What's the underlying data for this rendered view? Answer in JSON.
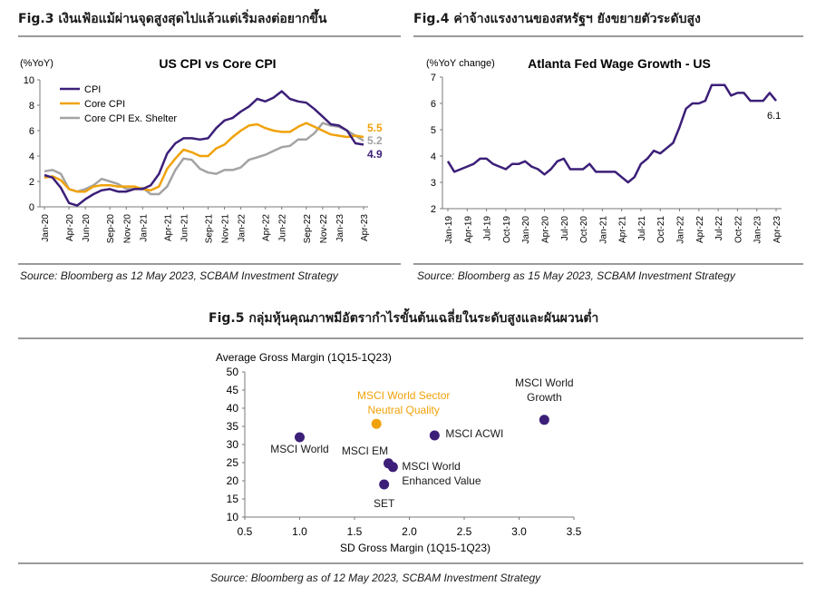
{
  "fig3": {
    "heading": "Fig.3 เงินเฟ้อแม้ผ่านจุดสูงสุดไปแล้วแต่เริ่มลงต่อยากขึ้น",
    "source": "Source: Bloomberg as 12 May 2023, SCBAM Investment Strategy"
  },
  "fig4": {
    "heading": "Fig.4 ค่าจ้างแรงงานของสหรัฐฯ ยังขยายตัวระดับสูง",
    "source": "Source: Bloomberg as 15 May 2023, SCBAM Investment Strategy"
  },
  "fig5": {
    "heading": "Fig.5 กลุ่มหุ้นคุณภาพมีอัตรากำไรขั้นต้นเฉลี่ยในระดับสูงและผันผวนต่ำ",
    "source": "Source: Bloomberg as of 12 May 2023, SCBAM Investment Strategy"
  },
  "colors": {
    "purple": "#3c1f78",
    "orange": "#f0a20a",
    "grey": "#a3a3a3",
    "axis": "#7a7a7a"
  },
  "chart_data": [
    {
      "id": "us-cpi",
      "type": "line",
      "title": "US CPI vs Core CPI",
      "ylabel": "(%YoY)",
      "ylim": [
        0,
        10
      ],
      "yticks": [
        "0",
        "2",
        "4",
        "6",
        "8",
        "10"
      ],
      "xticks": [
        "Jan-20",
        "Apr-20",
        "Jun-20",
        "Sep-20",
        "Nov-20",
        "Jan-21",
        "Apr-21",
        "Jun-21",
        "Sep-21",
        "Nov-21",
        "Jan-22",
        "Apr-22",
        "Jun-22",
        "Sep-22",
        "Nov-22",
        "Jan-23",
        "Apr-23"
      ],
      "xtick_index": [
        0,
        3,
        5,
        8,
        10,
        12,
        15,
        17,
        20,
        22,
        24,
        27,
        29,
        32,
        34,
        36,
        39
      ],
      "x": [
        "Jan-20",
        "Feb-20",
        "Mar-20",
        "Apr-20",
        "May-20",
        "Jun-20",
        "Jul-20",
        "Aug-20",
        "Sep-20",
        "Oct-20",
        "Nov-20",
        "Dec-20",
        "Jan-21",
        "Feb-21",
        "Mar-21",
        "Apr-21",
        "May-21",
        "Jun-21",
        "Jul-21",
        "Aug-21",
        "Sep-21",
        "Oct-21",
        "Nov-21",
        "Dec-21",
        "Jan-22",
        "Feb-22",
        "Mar-22",
        "Apr-22",
        "May-22",
        "Jun-22",
        "Jul-22",
        "Aug-22",
        "Sep-22",
        "Oct-22",
        "Nov-22",
        "Dec-22",
        "Jan-23",
        "Feb-23",
        "Mar-23",
        "Apr-23"
      ],
      "series": [
        {
          "name": "CPI",
          "color": "#3c1f78",
          "values": [
            2.5,
            2.3,
            1.5,
            0.3,
            0.1,
            0.6,
            1.0,
            1.3,
            1.4,
            1.2,
            1.2,
            1.4,
            1.4,
            1.7,
            2.6,
            4.2,
            5.0,
            5.4,
            5.4,
            5.3,
            5.4,
            6.2,
            6.8,
            7.0,
            7.5,
            7.9,
            8.5,
            8.3,
            8.6,
            9.1,
            8.5,
            8.3,
            8.2,
            7.7,
            7.1,
            6.5,
            6.4,
            6.0,
            5.0,
            4.9
          ]
        },
        {
          "name": "Core CPI",
          "color": "#f0a20a",
          "values": [
            2.3,
            2.4,
            2.1,
            1.4,
            1.2,
            1.2,
            1.6,
            1.7,
            1.7,
            1.6,
            1.6,
            1.6,
            1.4,
            1.3,
            1.6,
            3.0,
            3.8,
            4.5,
            4.3,
            4.0,
            4.0,
            4.6,
            4.9,
            5.5,
            6.0,
            6.4,
            6.5,
            6.2,
            6.0,
            5.9,
            5.9,
            6.3,
            6.6,
            6.3,
            6.0,
            5.7,
            5.6,
            5.5,
            5.6,
            5.5
          ]
        },
        {
          "name": "Core CPI Ex. Shelter",
          "color": "#a3a3a3",
          "values": [
            2.8,
            2.9,
            2.6,
            1.4,
            1.2,
            1.4,
            1.7,
            2.2,
            2.0,
            1.8,
            1.4,
            1.4,
            1.5,
            1.0,
            1.0,
            1.6,
            2.9,
            3.8,
            3.7,
            3.0,
            2.7,
            2.6,
            2.9,
            2.9,
            3.1,
            3.7,
            3.9,
            4.1,
            4.4,
            4.7,
            4.8,
            5.3,
            5.3,
            5.8,
            6.6,
            6.4,
            6.3,
            6.0,
            5.6,
            5.2
          ]
        }
      ],
      "end_labels": [
        "5.5",
        "5.2",
        "4.9"
      ]
    },
    {
      "id": "atlanta-wage",
      "type": "line",
      "title": "Atlanta Fed Wage Growth - US",
      "ylabel": "(%YoY change)",
      "ylim": [
        2,
        7
      ],
      "yticks": [
        "2",
        "3",
        "4",
        "5",
        "6",
        "7"
      ],
      "xticks": [
        "Jan-19",
        "Apr-19",
        "Jul-19",
        "Oct-19",
        "Jan-20",
        "Apr-20",
        "Jul-20",
        "Oct-20",
        "Jan-21",
        "Apr-21",
        "Jul-21",
        "Oct-21",
        "Jan-22",
        "Apr-22",
        "Jul-22",
        "Oct-22",
        "Jan-23",
        "Apr-23"
      ],
      "xtick_index": [
        0,
        3,
        6,
        9,
        12,
        15,
        18,
        21,
        24,
        27,
        30,
        33,
        36,
        39,
        42,
        45,
        48,
        51
      ],
      "series": [
        {
          "name": "Wage growth",
          "color": "#3c1f78",
          "values": [
            3.8,
            3.4,
            3.5,
            3.6,
            3.7,
            3.9,
            3.9,
            3.7,
            3.6,
            3.5,
            3.7,
            3.7,
            3.8,
            3.6,
            3.5,
            3.3,
            3.5,
            3.8,
            3.9,
            3.5,
            3.5,
            3.5,
            3.7,
            3.4,
            3.4,
            3.4,
            3.4,
            3.2,
            3.0,
            3.2,
            3.7,
            3.9,
            4.2,
            4.1,
            4.3,
            4.5,
            5.1,
            5.8,
            6.0,
            6.0,
            6.1,
            6.7,
            6.7,
            6.7,
            6.3,
            6.4,
            6.4,
            6.1,
            6.1,
            6.1,
            6.4,
            6.1
          ]
        }
      ],
      "end_labels": [
        "6.1"
      ]
    },
    {
      "id": "gross-margin",
      "type": "scatter",
      "title": "Average Gross Margin (1Q15-1Q23)",
      "xlabel": "SD Gross Margin (1Q15-1Q23)",
      "xlim": [
        0.5,
        3.5
      ],
      "ylim": [
        10,
        50
      ],
      "xticks": [
        "0.5",
        "1.0",
        "1.5",
        "2.0",
        "2.5",
        "3.0",
        "3.5"
      ],
      "yticks": [
        "10",
        "15",
        "20",
        "25",
        "30",
        "35",
        "40",
        "45",
        "50"
      ],
      "points": [
        {
          "x": 1.0,
          "y": 32.0,
          "color": "#3c1f78",
          "label": [
            "MSCI World"
          ]
        },
        {
          "x": 1.7,
          "y": 35.7,
          "color": "#f0a20a",
          "label": [
            "MSCI World Sector",
            "Neutral Quality"
          ]
        },
        {
          "x": 2.23,
          "y": 32.5,
          "color": "#3c1f78",
          "label": [
            "MSCI ACWI"
          ]
        },
        {
          "x": 3.23,
          "y": 36.8,
          "color": "#3c1f78",
          "label": [
            "MSCI World",
            "Growth"
          ]
        },
        {
          "x": 1.81,
          "y": 24.8,
          "color": "#3c1f78",
          "label": [
            "MSCI EM"
          ]
        },
        {
          "x": 1.85,
          "y": 23.8,
          "color": "#3c1f78",
          "label": [
            "MSCI World",
            "Enhanced Value"
          ]
        },
        {
          "x": 1.77,
          "y": 19.0,
          "color": "#3c1f78",
          "label": [
            "SET"
          ]
        }
      ]
    }
  ]
}
